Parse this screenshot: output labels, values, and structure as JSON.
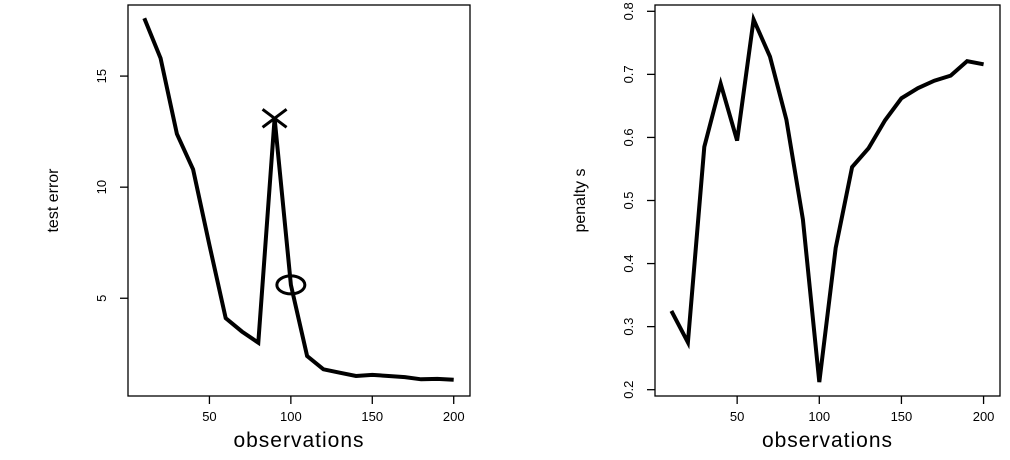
{
  "chart_data": [
    {
      "type": "line",
      "title": "",
      "xlabel": "observations",
      "ylabel": "test error",
      "xlim": [
        0,
        210
      ],
      "ylim": [
        0.6,
        18.2
      ],
      "xticks": [
        50,
        100,
        150,
        200
      ],
      "yticks": [
        5,
        10,
        15
      ],
      "grid": false,
      "legend": "none",
      "line_color": "#000000",
      "series": [
        {
          "x": [
            10,
            20,
            30,
            40,
            50,
            60,
            70,
            80,
            90,
            100,
            110,
            120,
            130,
            140,
            150,
            160,
            170,
            180,
            190,
            200
          ],
          "values": [
            17.6,
            15.8,
            12.4,
            10.8,
            7.4,
            4.1,
            3.5,
            3.0,
            13.1,
            5.6,
            2.4,
            1.8,
            1.65,
            1.5,
            1.55,
            1.5,
            1.45,
            1.35,
            1.37,
            1.33
          ]
        }
      ],
      "annotations": [
        {
          "symbol": "×",
          "x": 90,
          "y": 13.1
        },
        {
          "symbol": "o",
          "x": 100,
          "y": 5.6
        }
      ]
    },
    {
      "type": "line",
      "title": "",
      "xlabel": "observations",
      "ylabel": "penalty s",
      "xlim": [
        0,
        210
      ],
      "ylim": [
        0.19,
        0.81
      ],
      "xticks": [
        50,
        100,
        150,
        200
      ],
      "yticks": [
        0.2,
        0.3,
        0.4,
        0.5,
        0.6,
        0.7,
        0.8
      ],
      "grid": false,
      "legend": "none",
      "line_color": "#000000",
      "series": [
        {
          "x": [
            10,
            20,
            30,
            40,
            50,
            60,
            70,
            80,
            90,
            100,
            110,
            120,
            130,
            140,
            150,
            160,
            170,
            180,
            190,
            200
          ],
          "values": [
            0.325,
            0.275,
            0.585,
            0.685,
            0.595,
            0.787,
            0.728,
            0.628,
            0.47,
            0.212,
            0.425,
            0.553,
            0.583,
            0.627,
            0.662,
            0.678,
            0.69,
            0.698,
            0.721,
            0.716
          ]
        }
      ],
      "annotations": []
    }
  ]
}
